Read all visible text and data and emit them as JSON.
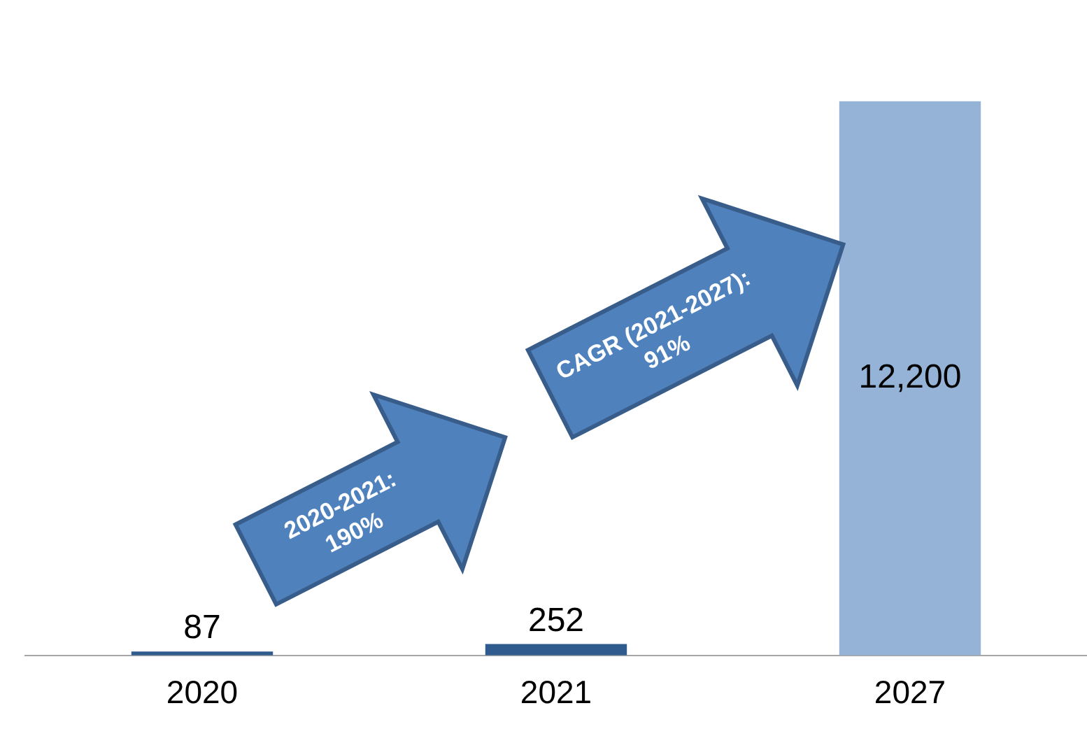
{
  "chart_data": {
    "type": "bar",
    "categories": [
      "2020",
      "2021",
      "2027"
    ],
    "values": [
      87,
      252,
      12200
    ],
    "colors": [
      "#2f5b8f",
      "#2f5b8f",
      "#95b3d7"
    ],
    "value_labels": [
      "87",
      "252",
      "12,200"
    ],
    "relative": false,
    "annotations": [
      "2020-2021: 190%",
      "CAGR (2021-2027): 91%"
    ],
    "grid": false,
    "legend": false
  }
}
